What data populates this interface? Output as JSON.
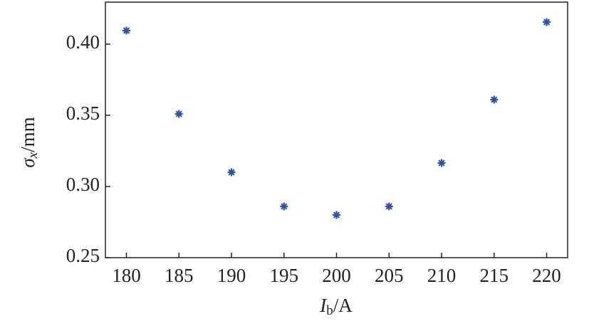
{
  "chart_data": {
    "type": "scatter",
    "x": [
      180,
      185,
      190,
      195,
      200,
      205,
      210,
      215,
      220
    ],
    "series": [
      {
        "color": "#2f52a0",
        "values": [
          0.4095,
          0.351,
          0.31,
          0.286,
          0.28,
          0.286,
          0.3165,
          0.361,
          0.4155
        ]
      }
    ],
    "xlim": [
      178,
      222
    ],
    "xticks": [
      180,
      185,
      190,
      195,
      200,
      205,
      210,
      215,
      220
    ],
    "ylim": [
      0.25,
      0.4295
    ],
    "yticks": [
      0.25,
      {
        "value": 0.3,
        "label": "0.30"
      },
      0.35,
      {
        "value": 0.4,
        "label": "0.40"
      }
    ],
    "xlabel": {
      "symbol": "I",
      "subscript": "b",
      "unit": "/A"
    },
    "ylabel": {
      "symbol": "σ",
      "subscript": "x",
      "unit": "/mm"
    }
  }
}
